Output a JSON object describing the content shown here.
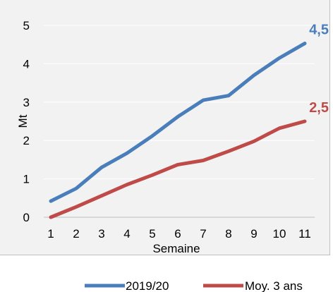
{
  "chart_data": {
    "type": "line",
    "title": "",
    "xlabel": "Semaine",
    "ylabel": "Mt",
    "x": [
      1,
      2,
      3,
      4,
      5,
      6,
      7,
      8,
      9,
      10,
      11
    ],
    "ylim": [
      0,
      5
    ],
    "yticks": [
      0,
      1,
      2,
      3,
      4,
      5
    ],
    "grid": "horizontal",
    "legend": "bottom",
    "series": [
      {
        "name": "2019/20",
        "color": "#4a7ebb",
        "values": [
          0.42,
          0.75,
          1.3,
          1.67,
          2.12,
          2.62,
          3.05,
          3.17,
          3.7,
          4.15,
          4.53
        ],
        "end_label": "4,5"
      },
      {
        "name": "Moy. 3 ans",
        "color": "#be4b48",
        "values": [
          0.0,
          0.27,
          0.56,
          0.85,
          1.1,
          1.37,
          1.48,
          1.72,
          1.98,
          2.32,
          2.5
        ],
        "end_label": "2,5"
      }
    ]
  }
}
